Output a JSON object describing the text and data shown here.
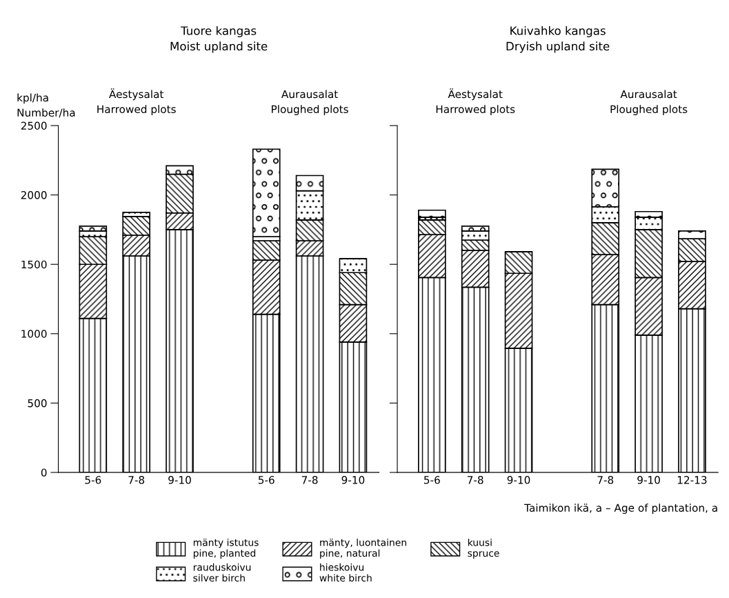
{
  "chart_data": [
    {
      "type": "bar",
      "stacked": true,
      "title": "Tuore kangas\nMoist upland site",
      "ylabel": "kpl/ha\nNumber/ha",
      "annotations": [
        "Äestysalat\nHarrowed plots",
        "Aurausalat\nPloughed plots"
      ],
      "categories": [
        "5-6",
        "7-8",
        "9-10",
        null,
        "5-6",
        "7-8",
        "9-10"
      ],
      "ylim": [
        0,
        2500
      ],
      "yticks": [
        0,
        500,
        1000,
        1500,
        2000,
        2500
      ],
      "grid": false,
      "legend": false,
      "series": [
        {
          "color": "#000000",
          "values": [
            1110,
            1560,
            1750,
            null,
            1140,
            1560,
            940
          ]
        },
        {
          "color": "#000000",
          "values": [
            390,
            150,
            120,
            null,
            390,
            110,
            270
          ]
        },
        {
          "color": "#000000",
          "values": [
            200,
            135,
            280,
            null,
            140,
            150,
            230
          ]
        },
        {
          "color": "#000000",
          "values": [
            40,
            30,
            0,
            null,
            30,
            210,
            100
          ]
        },
        {
          "color": "#000000",
          "values": [
            35,
            0,
            60,
            null,
            630,
            110,
            0
          ]
        }
      ]
    },
    {
      "type": "bar",
      "stacked": true,
      "title": "Kuivahko kangas\nDryish upland site",
      "xlabel": "Taimikon ikä, a – Age of plantation, a",
      "annotations": [
        "Äestysalat\nHarrowed plots",
        "Aurausalat\nPloughed plots"
      ],
      "categories": [
        "5-6",
        "7-8",
        "9-10",
        null,
        "7-8",
        "9-10",
        "12-13"
      ],
      "ylim": [
        0,
        2500
      ],
      "yticks": [
        0,
        500,
        1000,
        1500,
        2000,
        2500
      ],
      "grid": false,
      "legend": "bottom",
      "tick_labels": "x",
      "series": [
        {
          "name": "mänty istutus\npine, planted",
          "color": "#000000",
          "values": [
            1405,
            1335,
            895,
            null,
            1210,
            990,
            1180
          ]
        },
        {
          "name": "mänty, luontainen\npine, natural",
          "color": "#000000",
          "values": [
            310,
            265,
            540,
            null,
            360,
            415,
            340
          ]
        },
        {
          "name": "kuusi\nspruce",
          "color": "#000000",
          "values": [
            105,
            75,
            155,
            null,
            230,
            345,
            165
          ]
        },
        {
          "name": "rauduskoivu\nsilver birch",
          "color": "#000000",
          "values": [
            20,
            65,
            0,
            null,
            115,
            90,
            0
          ]
        },
        {
          "name": "hieskoivu\nwhite birch",
          "color": "#000000",
          "values": [
            50,
            35,
            0,
            null,
            270,
            40,
            55
          ]
        }
      ]
    }
  ]
}
